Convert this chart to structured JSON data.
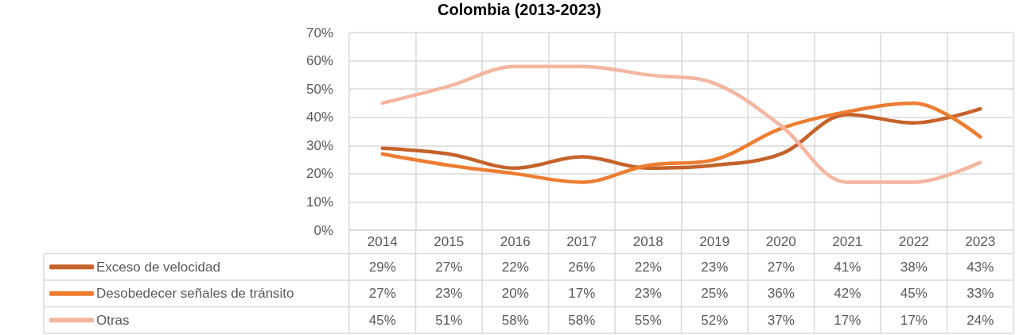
{
  "chart_data": {
    "type": "line",
    "title": "Colombia (2013-2023)",
    "categories": [
      "2014",
      "2015",
      "2016",
      "2017",
      "2018",
      "2019",
      "2020",
      "2021",
      "2022",
      "2023"
    ],
    "series": [
      {
        "name": "Exceso de velocidad",
        "color": "#c5622a",
        "values": [
          29,
          27,
          22,
          26,
          22,
          23,
          27,
          41,
          38,
          43
        ],
        "value_labels": [
          "29%",
          "27%",
          "22%",
          "26%",
          "22%",
          "23%",
          "27%",
          "41%",
          "38%",
          "43%"
        ]
      },
      {
        "name": "Desobedecer señales de tránsito",
        "color": "#ed7d31",
        "values": [
          27,
          23,
          20,
          17,
          23,
          25,
          36,
          42,
          45,
          33
        ],
        "value_labels": [
          "27%",
          "23%",
          "20%",
          "17%",
          "23%",
          "25%",
          "36%",
          "42%",
          "45%",
          "33%"
        ]
      },
      {
        "name": "Otras",
        "color": "#f4b6a0",
        "values": [
          45,
          51,
          58,
          58,
          55,
          52,
          37,
          17,
          17,
          24
        ],
        "value_labels": [
          "45%",
          "51%",
          "58%",
          "58%",
          "55%",
          "52%",
          "37%",
          "17%",
          "17%",
          "24%"
        ]
      }
    ],
    "ylim": [
      0,
      70
    ],
    "yticks": [
      {
        "value": 0,
        "label": "0%"
      },
      {
        "value": 10,
        "label": "10%"
      },
      {
        "value": 20,
        "label": "20%"
      },
      {
        "value": 30,
        "label": "30%"
      },
      {
        "value": 40,
        "label": "40%"
      },
      {
        "value": 50,
        "label": "50%"
      },
      {
        "value": 60,
        "label": "60%"
      },
      {
        "value": 70,
        "label": "70%"
      }
    ],
    "grid": true,
    "legend": "bottom",
    "marker": "none",
    "line_style": "solid"
  }
}
